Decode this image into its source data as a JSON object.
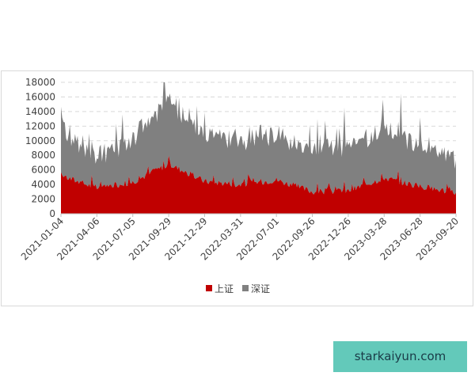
{
  "chart_data": {
    "type": "area",
    "stacked": true,
    "title": "",
    "xlabel": "",
    "ylabel": "",
    "ylim": [
      0,
      18000
    ],
    "yticks": [
      0,
      2000,
      4000,
      6000,
      8000,
      10000,
      12000,
      14000,
      16000,
      18000
    ],
    "y_tick_labels": [
      "0",
      "2000",
      "4000",
      "6000",
      "8000",
      "10000",
      "12000",
      "14000",
      "16000",
      "18000"
    ],
    "grid": "horizontal-dashed",
    "legend_position": "bottom-center",
    "x": [
      "2021-01-04",
      "2021-04-06",
      "2021-07-05",
      "2021-09-29",
      "2021-12-29",
      "2022-03-31",
      "2022-07-01",
      "2022-09-26",
      "2022-12-26",
      "2023-03-28",
      "2023-06-28",
      "2023-09-20"
    ],
    "series": [
      {
        "name": "上证",
        "color": "#c00000",
        "values": [
          5200,
          3500,
          4300,
          6800,
          4400,
          4000,
          4600,
          3000,
          3100,
          4900,
          3700,
          2900
        ]
      },
      {
        "name": "深证",
        "color": "#808080",
        "values": [
          6600,
          3900,
          5600,
          8500,
          6100,
          5800,
          6300,
          5400,
          5900,
          6600,
          5900,
          4500
        ]
      }
    ]
  },
  "watermark": {
    "text": "starkaiyun.com",
    "color": "#63c9ba"
  }
}
